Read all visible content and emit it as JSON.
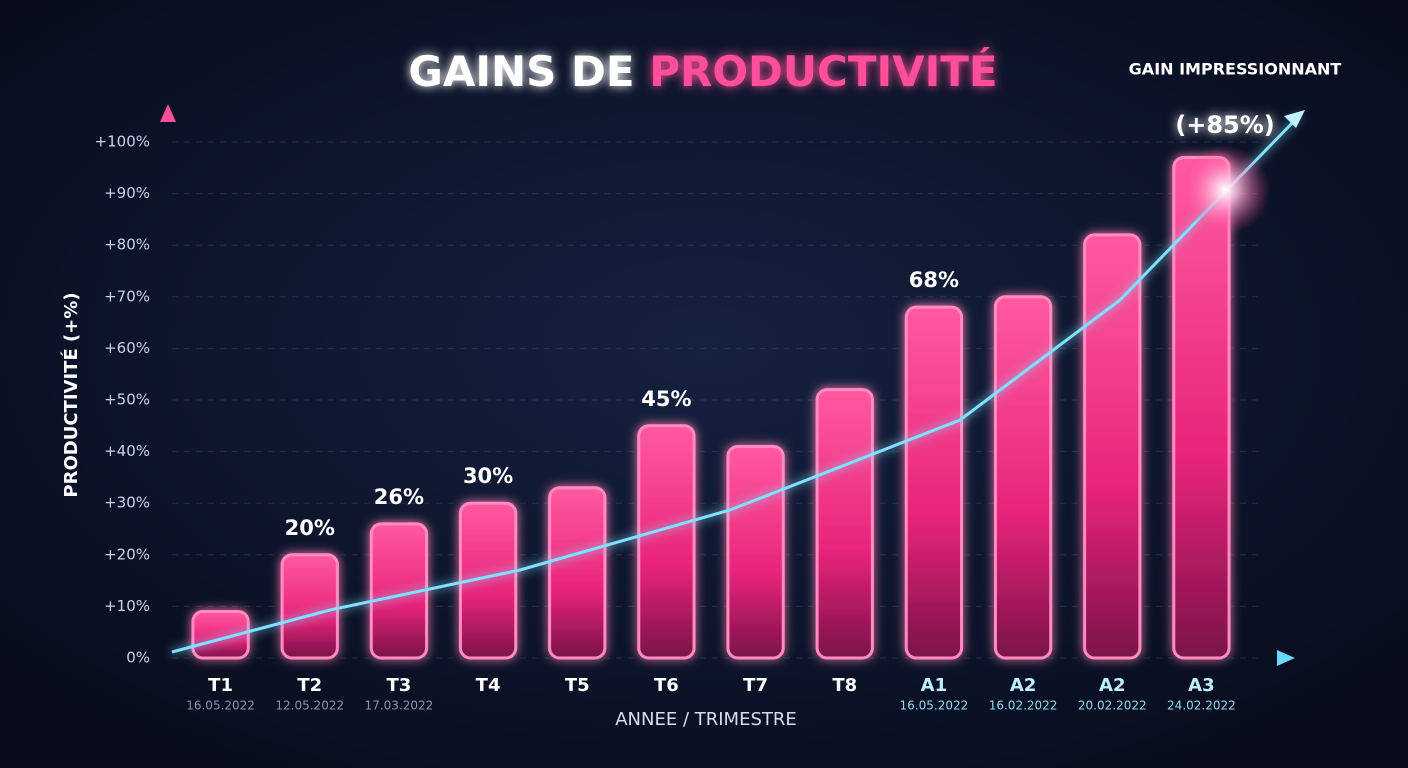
{
  "chart_data": {
    "type": "bar",
    "title": "GAINS DE",
    "title_highlight": "PRODUCTIVITÉ",
    "x_label": "ANNEE / TRIMESTRE",
    "y_label": "PRODUCTIVITÉ (+%)",
    "annotation": "GAIN IMPRESSIONNANT",
    "annotation_value": "(+85%)",
    "categories": [
      "T1",
      "T2",
      "T3",
      "T4",
      "T5",
      "T6",
      "T7",
      "T8",
      "A1",
      "A2",
      "A2",
      "A3"
    ],
    "dates": [
      "16.05.2022",
      "12.05.2022",
      "17.03.2022",
      null,
      null,
      null,
      null,
      null,
      "16.05.2022",
      "16.02.2022",
      "20.02.2022",
      "24.02.2022"
    ],
    "values": [
      9,
      20,
      26,
      30,
      33,
      45,
      41,
      52,
      68,
      70,
      82,
      97
    ],
    "value_labels": [
      null,
      "20%",
      "26%",
      "30%",
      null,
      "45%",
      null,
      null,
      "68%",
      null,
      null,
      null
    ],
    "color": "#ff3d8b",
    "ylim": [
      0,
      100
    ],
    "yticks": [
      {
        "value": 0,
        "label": "0%"
      },
      {
        "value": 10,
        "label": "+10%"
      },
      {
        "value": 20,
        "label": "+20%"
      },
      {
        "value": 30,
        "label": "+30%"
      },
      {
        "value": 40,
        "label": "+40%"
      },
      {
        "value": 50,
        "label": "+50%"
      },
      {
        "value": 60,
        "label": "+60%"
      },
      {
        "value": 70,
        "label": "+70%"
      },
      {
        "value": 80,
        "label": "+80%"
      },
      {
        "value": 90,
        "label": "+90%"
      },
      {
        "value": 100,
        "label": "+100%"
      }
    ],
    "grid": true
  }
}
